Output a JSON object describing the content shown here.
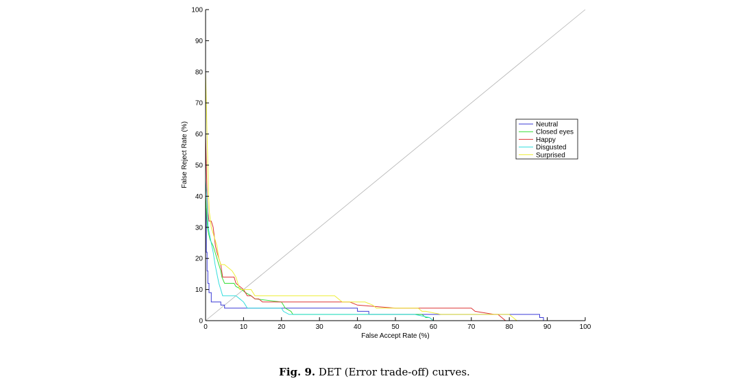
{
  "chart_data": {
    "type": "line",
    "xlabel": "False Accept Rate (%)",
    "ylabel": "False Reject Rate (%)",
    "xlim": [
      0,
      100
    ],
    "ylim": [
      0,
      100
    ],
    "xticks": [
      0,
      10,
      20,
      30,
      40,
      50,
      60,
      70,
      80,
      90,
      100
    ],
    "yticks": [
      0,
      10,
      20,
      30,
      40,
      50,
      60,
      70,
      80,
      90,
      100
    ],
    "legend_position": "right",
    "reference_line": {
      "x": [
        0,
        100
      ],
      "y": [
        0,
        100
      ],
      "color": "#b0b0b0"
    },
    "series": [
      {
        "name": "Neutral",
        "color": "#3a3ad6",
        "x": [
          0,
          0,
          0.2,
          0.2,
          0.4,
          0.4,
          0.6,
          0.6,
          0.9,
          0.9,
          1.5,
          1.5,
          4,
          4,
          5,
          5,
          11,
          11,
          21,
          21,
          40,
          40,
          43,
          43,
          70,
          70,
          88,
          88,
          89,
          89,
          100
        ],
        "y": [
          55,
          36,
          36,
          22,
          22,
          16,
          16,
          12,
          12,
          9,
          9,
          6,
          6,
          5,
          5,
          4,
          4,
          4,
          4,
          4,
          4,
          3,
          3,
          2,
          2,
          2,
          2,
          1,
          1,
          0,
          0
        ]
      },
      {
        "name": "Closed eyes",
        "color": "#33dd33",
        "x": [
          0,
          0,
          0.3,
          0.5,
          0.8,
          1.2,
          2,
          2.5,
          3,
          3.5,
          4,
          4.3,
          5,
          7.5,
          8,
          9.5,
          10.5,
          12,
          13,
          20,
          21,
          22.5,
          23,
          40,
          42,
          57,
          58,
          59,
          60,
          100
        ],
        "y": [
          62,
          40,
          34,
          30,
          28,
          26,
          24,
          22,
          20,
          18,
          16,
          14,
          12,
          12,
          11,
          10,
          9,
          8,
          7,
          6,
          4,
          3,
          2,
          2,
          2,
          2,
          1,
          1,
          0,
          0
        ]
      },
      {
        "name": "Happy",
        "color": "#dd3333",
        "x": [
          0,
          0,
          0.2,
          0.4,
          0.6,
          0.9,
          1.2,
          1.5,
          2,
          2.6,
          3,
          3.5,
          4,
          4.5,
          5,
          7.5,
          8,
          9,
          10,
          11,
          12,
          13,
          14,
          15,
          38,
          40,
          50,
          69,
          70,
          71,
          76,
          77,
          79,
          100
        ],
        "y": [
          74,
          60,
          50,
          40,
          35,
          32,
          32,
          32,
          30,
          24,
          22,
          20,
          18,
          14,
          14,
          14,
          12,
          11,
          10,
          8,
          8,
          7,
          7,
          6,
          6,
          5,
          4,
          4,
          4,
          3,
          2,
          2,
          0,
          0
        ]
      },
      {
        "name": "Disgusted",
        "color": "#33dddd",
        "x": [
          0,
          0,
          0.3,
          0.5,
          0.7,
          1,
          1.5,
          2,
          2.5,
          3,
          3.5,
          4,
          4.5,
          6,
          8,
          9,
          10,
          10.5,
          11,
          12,
          20,
          20.5,
          22,
          23,
          40,
          55,
          59,
          60,
          100
        ],
        "y": [
          57,
          45,
          40,
          35,
          30,
          28,
          25,
          22,
          18,
          15,
          12,
          10,
          8,
          8,
          8,
          7,
          6,
          5,
          4,
          4,
          4,
          3,
          2,
          2,
          2,
          2,
          1,
          0,
          0
        ]
      },
      {
        "name": "Surprised",
        "color": "#eeee33",
        "x": [
          0,
          0,
          0.2,
          0.4,
          0.6,
          0.8,
          1,
          1.5,
          2,
          2.5,
          3,
          3.5,
          4,
          5,
          7,
          8,
          8.5,
          9,
          12,
          13,
          14,
          34,
          35,
          36,
          42,
          44,
          45,
          56,
          57,
          58,
          62,
          80,
          82,
          100
        ],
        "y": [
          100,
          80,
          70,
          60,
          50,
          40,
          35,
          30,
          28,
          26,
          24,
          20,
          18,
          18,
          16,
          14,
          12,
          10,
          10,
          8,
          8,
          8,
          7,
          6,
          6,
          5,
          4,
          4,
          3,
          3,
          2,
          2,
          0,
          0
        ]
      }
    ]
  },
  "caption": {
    "label": "Fig. 9.",
    "text": " DET (Error trade-off) curves."
  }
}
